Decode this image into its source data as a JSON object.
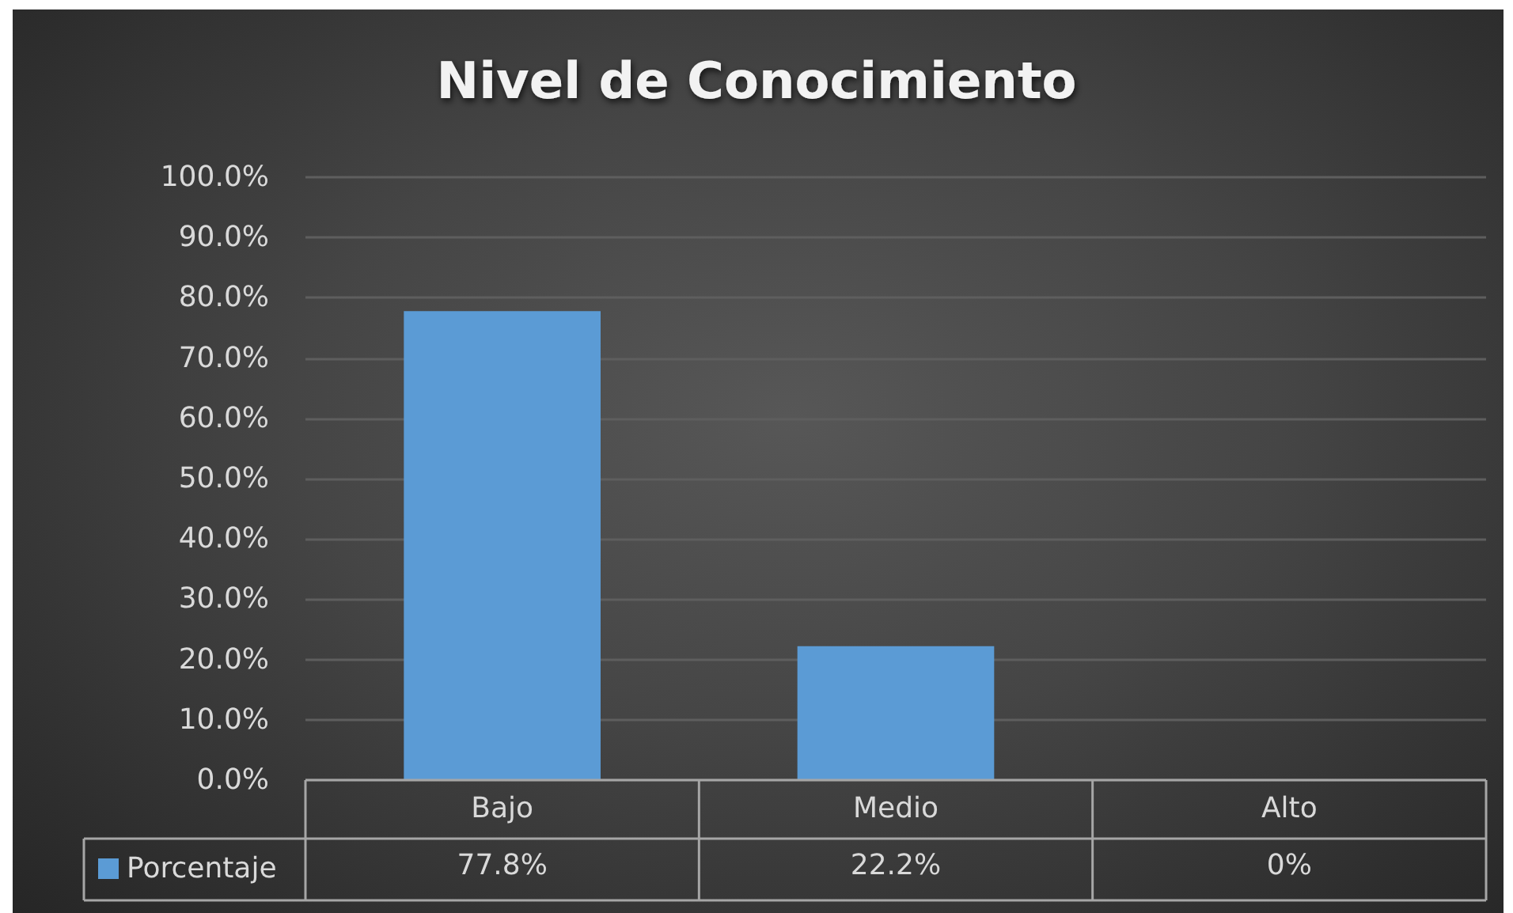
{
  "chart_data": {
    "type": "bar",
    "title": "Nivel de Conocimiento",
    "categories": [
      "Bajo",
      "Medio",
      "Alto"
    ],
    "series": [
      {
        "name": "Porcentaje",
        "color": "#5b9bd5",
        "values": [
          77.8,
          22.2,
          0
        ],
        "value_labels": [
          "77.8%",
          "22.2%",
          "0%"
        ]
      }
    ],
    "ylim": [
      0,
      100
    ],
    "yticks": [
      {
        "value": 0,
        "label": "0.0%"
      },
      {
        "value": 10,
        "label": "10.0%"
      },
      {
        "value": 20,
        "label": "20.0%"
      },
      {
        "value": 30,
        "label": "30.0%"
      },
      {
        "value": 40,
        "label": "40.0%"
      },
      {
        "value": 50,
        "label": "50.0%"
      },
      {
        "value": 60,
        "label": "60.0%"
      },
      {
        "value": 70,
        "label": "70.0%"
      },
      {
        "value": 80,
        "label": "80.0%"
      },
      {
        "value": 90,
        "label": "90.0%"
      },
      {
        "value": 100,
        "label": "100.0%"
      }
    ],
    "grid": "y",
    "legend": "bottom left"
  }
}
